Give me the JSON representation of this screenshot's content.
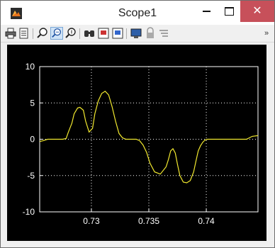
{
  "window": {
    "title": "Scope1",
    "minimize_icon": "minimize-icon",
    "maximize_icon": "maximize-icon",
    "close_icon": "close-icon"
  },
  "toolbar": {
    "buttons": [
      {
        "icon": "print-icon"
      },
      {
        "icon": "parameters-icon"
      },
      {
        "icon": "zoom-icon"
      },
      {
        "icon": "zoom-x-icon",
        "state": "pressed"
      },
      {
        "icon": "zoom-y-icon"
      },
      {
        "icon": "binoculars-icon"
      },
      {
        "icon": "save-axes-icon"
      },
      {
        "icon": "restore-axes-icon"
      },
      {
        "icon": "floating-scope-icon"
      },
      {
        "icon": "lock-icon"
      },
      {
        "icon": "signal-selection-icon"
      }
    ],
    "overflow_icon": "chevron-right-icon"
  },
  "colors": {
    "plot_background": "#000000",
    "axes_color": "#ffffff",
    "grid_color": "#ffffff",
    "signal_color": "#f2e92f",
    "close_button": "#c7505a"
  },
  "chart_data": {
    "type": "line",
    "title": "",
    "xlabel": "",
    "ylabel": "",
    "xlim": [
      0.7255,
      0.7445
    ],
    "ylim": [
      -10,
      10
    ],
    "xticks": [
      0.73,
      0.735,
      0.74
    ],
    "xtick_labels": [
      "0.73",
      "0.735",
      "0.74"
    ],
    "yticks": [
      10,
      5,
      0,
      -5,
      -10
    ],
    "ytick_labels": [
      "10",
      "5",
      "0",
      "-5",
      "-10"
    ],
    "grid": true,
    "series": [
      {
        "x": [
          0.7255,
          0.7258,
          0.7262,
          0.7265,
          0.7268,
          0.7272,
          0.7275,
          0.7278,
          0.728,
          0.7283,
          0.7285,
          0.7288,
          0.729,
          0.7293,
          0.7295,
          0.7298,
          0.7301,
          0.7303,
          0.7306,
          0.7309,
          0.7312,
          0.7315,
          0.7318,
          0.7321,
          0.7324,
          0.7327,
          0.733,
          0.7333,
          0.7336,
          0.7339,
          0.7342,
          0.7345,
          0.7348,
          0.7351,
          0.7355,
          0.736,
          0.7365,
          0.7367,
          0.7369,
          0.7371,
          0.7373,
          0.7375,
          0.7377,
          0.738,
          0.7383,
          0.7386,
          0.7389,
          0.7391,
          0.7393,
          0.7395,
          0.7397,
          0.7399,
          0.7401,
          0.7403,
          0.7405,
          0.7408,
          0.7411,
          0.7414,
          0.7416,
          0.7418,
          0.7421,
          0.7425,
          0.743,
          0.7435,
          0.744,
          0.7445
        ],
        "y": [
          -0.3,
          -0.2,
          0.0,
          0.0,
          0.0,
          0.0,
          0.0,
          0.1,
          1.0,
          2.2,
          3.5,
          4.3,
          4.4,
          4.0,
          2.5,
          1.0,
          1.5,
          3.5,
          5.3,
          6.3,
          6.6,
          6.1,
          4.5,
          2.5,
          0.8,
          0.2,
          0.0,
          0.0,
          0.0,
          0.0,
          -0.2,
          -0.8,
          -1.8,
          -3.3,
          -4.5,
          -4.8,
          -3.8,
          -2.8,
          -1.6,
          -1.3,
          -1.9,
          -3.5,
          -5.0,
          -5.9,
          -6.0,
          -5.7,
          -4.5,
          -3.0,
          -1.6,
          -0.9,
          -0.4,
          -0.1,
          0.0,
          0.0,
          0.0,
          0.0,
          0.0,
          0.0,
          0.0,
          0.0,
          0.0,
          0.0,
          0.0,
          0.0,
          0.4,
          0.5
        ]
      }
    ]
  }
}
